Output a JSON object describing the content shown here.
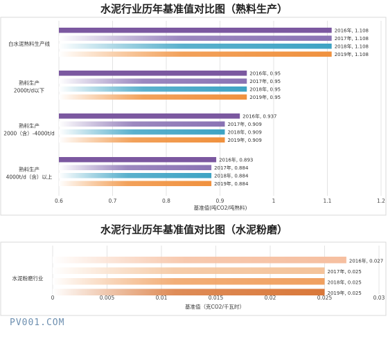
{
  "chart_data": [
    {
      "type": "bar",
      "orientation": "horizontal",
      "title": "水泥行业历年基准值对比图（熟料生产）",
      "xlabel": "基准值(吨CO2/吨熟料)",
      "xlim": [
        0.6,
        1.2
      ],
      "xticks": [
        "0.6",
        "0.7",
        "0.8",
        "0.9",
        "1",
        "1.1",
        "1.2"
      ],
      "grid": true,
      "groups": [
        {
          "category_lines": [
            "白水泥熟料生产线"
          ],
          "bars": [
            {
              "year": "2016年",
              "value": 1.108,
              "label": "2016年, 1.108"
            },
            {
              "year": "2017年",
              "value": 1.108,
              "label": "2017年, 1.108"
            },
            {
              "year": "2018年",
              "value": 1.108,
              "label": "2018年, 1.108"
            },
            {
              "year": "2019年",
              "value": 1.108,
              "label": "2019年, 1.108"
            }
          ]
        },
        {
          "category_lines": [
            "熟料生产",
            "2000t/d以下"
          ],
          "bars": [
            {
              "year": "2016年",
              "value": 0.95,
              "label": "2016年, 0.95"
            },
            {
              "year": "2017年",
              "value": 0.95,
              "label": "2017年, 0.95"
            },
            {
              "year": "2018年",
              "value": 0.95,
              "label": "2018年, 0.95"
            },
            {
              "year": "2019年",
              "value": 0.95,
              "label": "2019年, 0.95"
            }
          ]
        },
        {
          "category_lines": [
            "熟料生产",
            "2000（含）-4000t/d"
          ],
          "bars": [
            {
              "year": "2016年",
              "value": 0.937,
              "label": "2016年, 0.937"
            },
            {
              "year": "2017年",
              "value": 0.909,
              "label": "2017年, 0.909"
            },
            {
              "year": "2018年",
              "value": 0.909,
              "label": "2018年, 0.909"
            },
            {
              "year": "2019年",
              "value": 0.909,
              "label": "2019年, 0.909"
            }
          ]
        },
        {
          "category_lines": [
            "熟料生产",
            "4000t/d（含）以上"
          ],
          "bars": [
            {
              "year": "2016年",
              "value": 0.893,
              "label": "2016年, 0.893"
            },
            {
              "year": "2017年",
              "value": 0.884,
              "label": "2017年, 0.884"
            },
            {
              "year": "2018年",
              "value": 0.884,
              "label": "2018年, 0.884"
            },
            {
              "year": "2019年",
              "value": 0.884,
              "label": "2019年, 0.884"
            }
          ]
        }
      ],
      "series_colors": [
        "#7b58a0",
        "#8a73b4",
        "#3ea3c4",
        "#f0913e"
      ]
    },
    {
      "type": "bar",
      "orientation": "horizontal",
      "title": "水泥行业历年基准值对比图（水泥粉磨）",
      "xlabel": "基准值（克CO2/千瓦时）",
      "xlim": [
        0,
        0.03
      ],
      "xticks": [
        "0",
        "0.005",
        "0.01",
        "0.015",
        "0.02",
        "0.025",
        "0.03"
      ],
      "grid": true,
      "groups": [
        {
          "category_lines": [
            "水泥粉磨行业"
          ],
          "bars": [
            {
              "year": "2016年",
              "value": 0.027,
              "label": "2016年, 0.027"
            },
            {
              "year": "2017年",
              "value": 0.025,
              "label": "2017年, 0.025"
            },
            {
              "year": "2018年",
              "value": 0.025,
              "label": "2018年, 0.025"
            },
            {
              "year": "2019年",
              "value": 0.025,
              "label": "2019年, 0.025"
            }
          ]
        }
      ],
      "series_colors": [
        "#f6bfa0",
        "#f4c39a",
        "#f0a060",
        "#d9783a"
      ]
    }
  ],
  "watermark": "PV001.COM"
}
